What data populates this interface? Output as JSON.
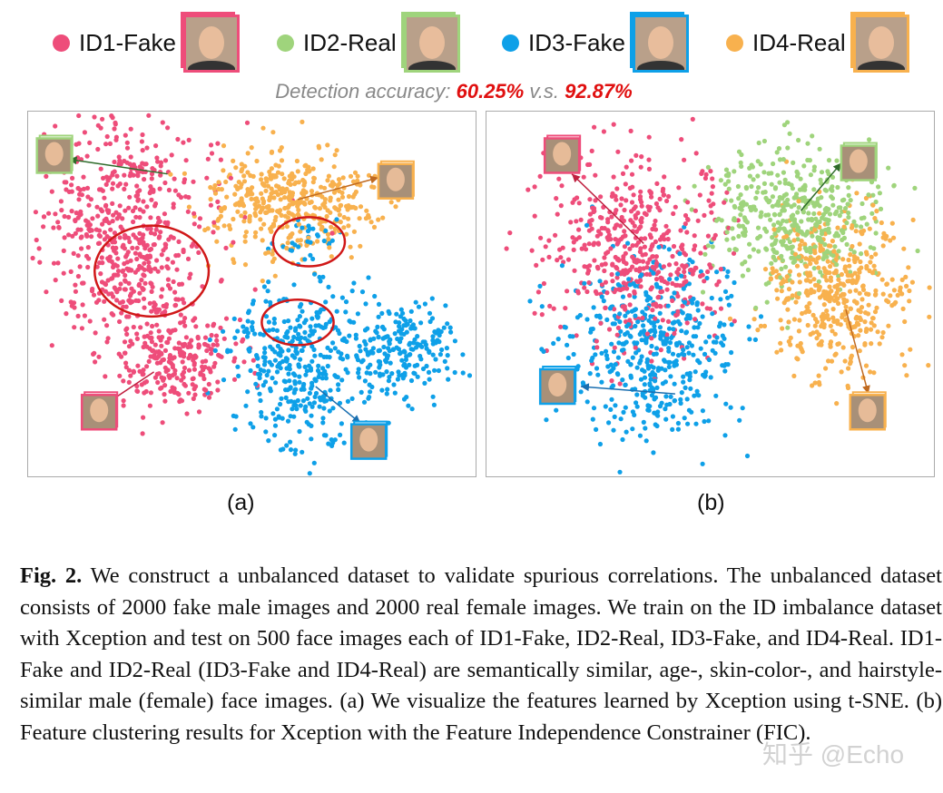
{
  "legend": [
    {
      "label": "ID1-Fake",
      "color": "#ee4d7a"
    },
    {
      "label": "ID2-Real",
      "color": "#9fd47c"
    },
    {
      "label": "ID3-Fake",
      "color": "#0ea0e8"
    },
    {
      "label": "ID4-Real",
      "color": "#f8b14e"
    }
  ],
  "accuracy": {
    "prefix": "Detection accuracy: ",
    "a": "60.25%",
    "mid": " v.s. ",
    "b": "92.87%"
  },
  "chart_data": [
    {
      "type": "scatter",
      "title": "(a)",
      "clusters": [
        {
          "id": 0,
          "cx": 21,
          "cy": 27,
          "sx": 12,
          "sy": 16,
          "n": 480
        },
        {
          "id": 0,
          "cx": 32,
          "cy": 68,
          "sx": 7,
          "sy": 7,
          "n": 260
        },
        {
          "id": 0,
          "cx": 23,
          "cy": 45,
          "sx": 6,
          "sy": 7,
          "n": 140
        },
        {
          "id": 3,
          "cx": 58,
          "cy": 25,
          "sx": 9,
          "sy": 7,
          "n": 420
        },
        {
          "id": 2,
          "cx": 61,
          "cy": 69,
          "sx": 8,
          "sy": 11,
          "n": 380
        },
        {
          "id": 2,
          "cx": 83,
          "cy": 65,
          "sx": 6,
          "sy": 6,
          "n": 220
        },
        {
          "id": 2,
          "cx": 63,
          "cy": 35,
          "sx": 3,
          "sy": 3,
          "n": 30
        }
      ],
      "ellipses": [
        {
          "cx": 27.5,
          "cy": 43.5,
          "rx": 12.7,
          "ry": 12.4
        },
        {
          "cx": 62.5,
          "cy": 35.5,
          "rx": 8,
          "ry": 6.7
        },
        {
          "cx": 60,
          "cy": 57.5,
          "rx": 8,
          "ry": 6.2
        }
      ],
      "arrows": [
        {
          "id": 1,
          "from": [
            31,
            17
          ],
          "to": [
            9,
            13
          ],
          "face": [
            6,
            12
          ]
        },
        {
          "id": 3,
          "from": [
            60,
            24
          ],
          "to": [
            78,
            18
          ],
          "face": [
            82,
            19
          ]
        },
        {
          "id": 0,
          "from": [
            28,
            71
          ],
          "to": [
            17,
            80
          ],
          "face": [
            16,
            82
          ]
        },
        {
          "id": 2,
          "from": [
            64,
            75
          ],
          "to": [
            74,
            85
          ],
          "face": [
            76,
            90
          ]
        }
      ]
    },
    {
      "type": "scatter",
      "title": "(b)",
      "clusters": [
        {
          "id": 0,
          "cx": 33,
          "cy": 39,
          "sx": 10,
          "sy": 13,
          "n": 500
        },
        {
          "id": 2,
          "cx": 37,
          "cy": 64,
          "sx": 9,
          "sy": 12,
          "n": 480
        },
        {
          "id": 1,
          "cx": 68,
          "cy": 29,
          "sx": 9,
          "sy": 9,
          "n": 450
        },
        {
          "id": 3,
          "cx": 78,
          "cy": 49,
          "sx": 8,
          "sy": 11,
          "n": 450
        }
      ],
      "ellipses": [],
      "arrows": [
        {
          "id": 0,
          "from": [
            35,
            36
          ],
          "to": [
            19,
            17
          ],
          "face": [
            17,
            12
          ]
        },
        {
          "id": 1,
          "from": [
            70,
            27
          ],
          "to": [
            79,
            14
          ],
          "face": [
            83,
            14
          ]
        },
        {
          "id": 2,
          "from": [
            42,
            77
          ],
          "to": [
            21,
            75
          ],
          "face": [
            16,
            75
          ]
        },
        {
          "id": 3,
          "from": [
            80,
            54
          ],
          "to": [
            85,
            77
          ],
          "face": [
            85,
            82
          ]
        }
      ]
    }
  ],
  "subcaptions": [
    "(a)",
    "(b)"
  ],
  "caption": {
    "fig": "Fig. 2.",
    "text": " We construct a unbalanced dataset to validate spurious correlations. The unbalanced dataset consists of 2000 fake male images and 2000 real female images. We train on the ID imbalance dataset with Xception and test on 500 face images each of ID1-Fake, ID2-Real, ID3-Fake, and ID4-Real. ID1-Fake and ID2-Real (ID3-Fake and ID4-Real) are semantically similar, age-, skin-color-, and hairstyle-similar male (female) face images. (a) We visualize the features learned by Xception using t-SNE. (b) Feature clustering results for Xception with the Feature Independence Constrainer (FIC)."
  },
  "watermark": "知乎 @Echo"
}
